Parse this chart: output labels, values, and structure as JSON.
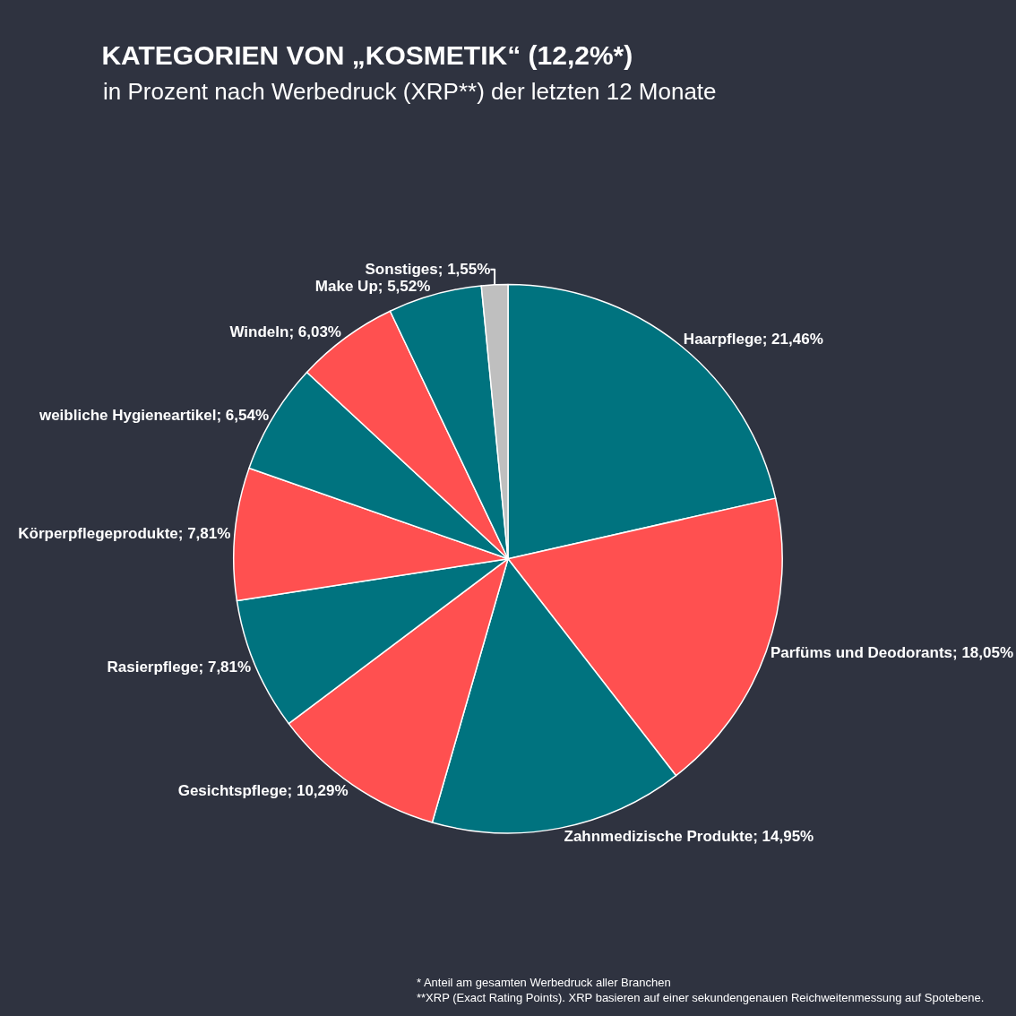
{
  "chart_data": {
    "type": "pie",
    "title": "KATEGORIEN VON „KOSMETIK“ (12,2%*)",
    "subtitle": "in Prozent nach Werbedruck (XRP**) der letzten 12 Monate",
    "categories": [
      "Haarpflege",
      "Parfüms und Deodorants",
      "Zahnmedizische Produkte",
      "Gesichtspflege",
      "Rasierpflege",
      "Körperpflegeprodukte",
      "weibliche Hygieneartikel",
      "Windeln",
      "Make Up",
      "Sonstiges"
    ],
    "values": [
      21.46,
      18.05,
      14.95,
      10.29,
      7.81,
      7.81,
      6.54,
      6.03,
      5.52,
      1.55
    ],
    "value_labels": [
      "21,46%",
      "18,05%",
      "14,95%",
      "10,29%",
      "7,81%",
      "7,81%",
      "6,54%",
      "6,03%",
      "5,52%",
      "1,55%"
    ],
    "colors": [
      "#00737f",
      "#ff5050",
      "#00737f",
      "#ff5050",
      "#00737f",
      "#ff5050",
      "#00737f",
      "#ff5050",
      "#00737f",
      "#bfbfbf"
    ],
    "legend": false,
    "annotations": [
      "* Anteil am gesamten Werbedruck aller Branchen",
      "**XRP (Exact Rating Points). XRP basieren auf einer sekundengenauen Reichweitenmessung auf Spotebene."
    ]
  }
}
